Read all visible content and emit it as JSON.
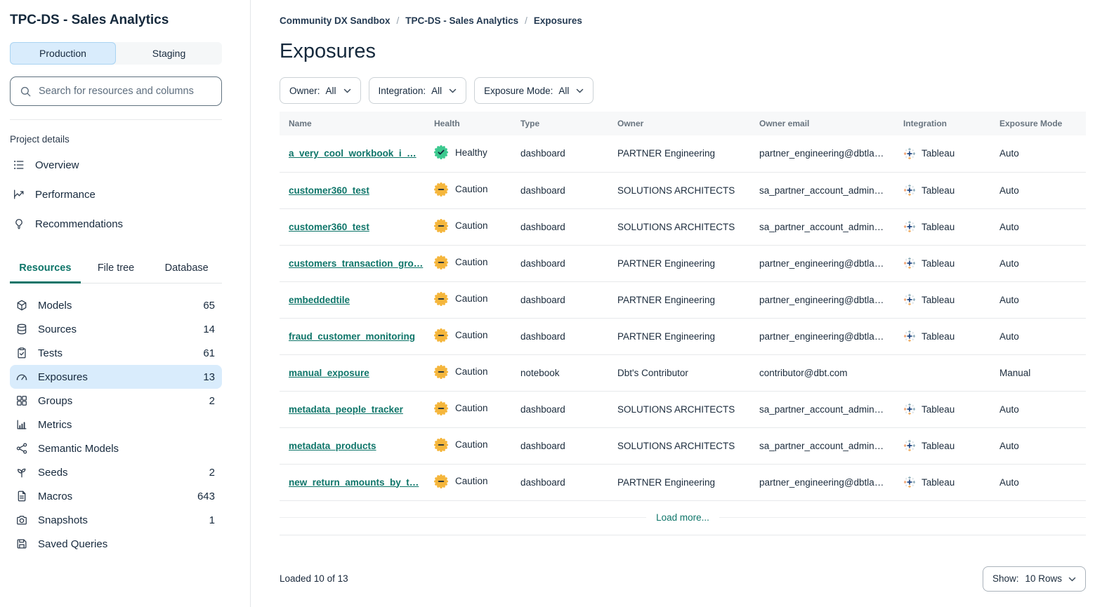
{
  "colors": {
    "accent_teal": "#0e7569",
    "healthy_green": "#3cc98f",
    "caution_amber": "#f5b63c",
    "active_blue_bg": "#d9ecfc",
    "dark_text": "#16293d"
  },
  "sidebar": {
    "project_title": "TPC-DS - Sales Analytics",
    "environment_toggle": {
      "production_label": "Production",
      "staging_label": "Staging",
      "active": "Production"
    },
    "search_placeholder": "Search for resources and columns",
    "project_details_label": "Project details",
    "project_detail_items": [
      {
        "label": "Overview",
        "icon": "overview-list-icon"
      },
      {
        "label": "Performance",
        "icon": "performance-chart-icon"
      },
      {
        "label": "Recommendations",
        "icon": "lightbulb-icon"
      }
    ],
    "tabs": [
      {
        "label": "Resources",
        "active": true
      },
      {
        "label": "File tree",
        "active": false
      },
      {
        "label": "Database",
        "active": false
      }
    ],
    "resources": [
      {
        "label": "Models",
        "count": "65",
        "icon": "cube-icon",
        "active": false
      },
      {
        "label": "Sources",
        "count": "14",
        "icon": "database-icon",
        "active": false
      },
      {
        "label": "Tests",
        "count": "61",
        "icon": "clipboard-check-icon",
        "active": false
      },
      {
        "label": "Exposures",
        "count": "13",
        "icon": "gauge-icon",
        "active": true
      },
      {
        "label": "Groups",
        "count": "2",
        "icon": "grid-icon",
        "active": false
      },
      {
        "label": "Metrics",
        "count": "",
        "icon": "bar-chart-icon",
        "active": false
      },
      {
        "label": "Semantic Models",
        "count": "",
        "icon": "network-icon",
        "active": false
      },
      {
        "label": "Seeds",
        "count": "2",
        "icon": "seedling-icon",
        "active": false
      },
      {
        "label": "Macros",
        "count": "643",
        "icon": "file-text-icon",
        "active": false
      },
      {
        "label": "Snapshots",
        "count": "1",
        "icon": "camera-icon",
        "active": false
      },
      {
        "label": "Saved Queries",
        "count": "",
        "icon": "save-icon",
        "active": false
      }
    ]
  },
  "main": {
    "breadcrumb": {
      "separator": "/",
      "items": [
        "Community DX Sandbox",
        "TPC-DS - Sales Analytics",
        "Exposures"
      ]
    },
    "page_title": "Exposures",
    "filters": [
      {
        "label": "Owner:",
        "value": "All"
      },
      {
        "label": "Integration:",
        "value": "All"
      },
      {
        "label": "Exposure Mode:",
        "value": "All"
      }
    ],
    "table": {
      "columns": [
        "Name",
        "Health",
        "Type",
        "Owner",
        "Owner email",
        "Integration",
        "Exposure Mode"
      ],
      "rows": [
        {
          "name": "a_very_cool_workbook_i_…",
          "health_label": "Healthy",
          "health_status": "healthy",
          "type": "dashboard",
          "owner": "PARTNER Engineering",
          "owner_email": "partner_engineering@dbtla…",
          "integration": "Tableau",
          "exposure_mode": "Auto"
        },
        {
          "name": "customer360_test",
          "health_label": "Caution",
          "health_status": "caution",
          "type": "dashboard",
          "owner": "SOLUTIONS ARCHITECTS",
          "owner_email": "sa_partner_account_admin…",
          "integration": "Tableau",
          "exposure_mode": "Auto"
        },
        {
          "name": "customer360_test",
          "health_label": "Caution",
          "health_status": "caution",
          "type": "dashboard",
          "owner": "SOLUTIONS ARCHITECTS",
          "owner_email": "sa_partner_account_admin…",
          "integration": "Tableau",
          "exposure_mode": "Auto"
        },
        {
          "name": "customers_transaction_gro…",
          "health_label": "Caution",
          "health_status": "caution",
          "type": "dashboard",
          "owner": "PARTNER Engineering",
          "owner_email": "partner_engineering@dbtla…",
          "integration": "Tableau",
          "exposure_mode": "Auto"
        },
        {
          "name": "embeddedtile",
          "health_label": "Caution",
          "health_status": "caution",
          "type": "dashboard",
          "owner": "PARTNER Engineering",
          "owner_email": "partner_engineering@dbtla…",
          "integration": "Tableau",
          "exposure_mode": "Auto"
        },
        {
          "name": "fraud_customer_monitoring",
          "health_label": "Caution",
          "health_status": "caution",
          "type": "dashboard",
          "owner": "PARTNER Engineering",
          "owner_email": "partner_engineering@dbtla…",
          "integration": "Tableau",
          "exposure_mode": "Auto"
        },
        {
          "name": "manual_exposure",
          "health_label": "Caution",
          "health_status": "caution",
          "type": "notebook",
          "owner": "Dbt's Contributor",
          "owner_email": "contributor@dbt.com",
          "integration": "",
          "exposure_mode": "Manual"
        },
        {
          "name": "metadata_people_tracker",
          "health_label": "Caution",
          "health_status": "caution",
          "type": "dashboard",
          "owner": "SOLUTIONS ARCHITECTS",
          "owner_email": "sa_partner_account_admin…",
          "integration": "Tableau",
          "exposure_mode": "Auto"
        },
        {
          "name": "metadata_products",
          "health_label": "Caution",
          "health_status": "caution",
          "type": "dashboard",
          "owner": "SOLUTIONS ARCHITECTS",
          "owner_email": "sa_partner_account_admin…",
          "integration": "Tableau",
          "exposure_mode": "Auto"
        },
        {
          "name": "new_return_amounts_by_t…",
          "health_label": "Caution",
          "health_status": "caution",
          "type": "dashboard",
          "owner": "PARTNER Engineering",
          "owner_email": "partner_engineering@dbtla…",
          "integration": "Tableau",
          "exposure_mode": "Auto"
        }
      ]
    },
    "load_more_label": "Load more...",
    "footer": {
      "loaded_text": "Loaded 10 of 13",
      "show_label": "Show:",
      "show_value": "10 Rows"
    }
  }
}
